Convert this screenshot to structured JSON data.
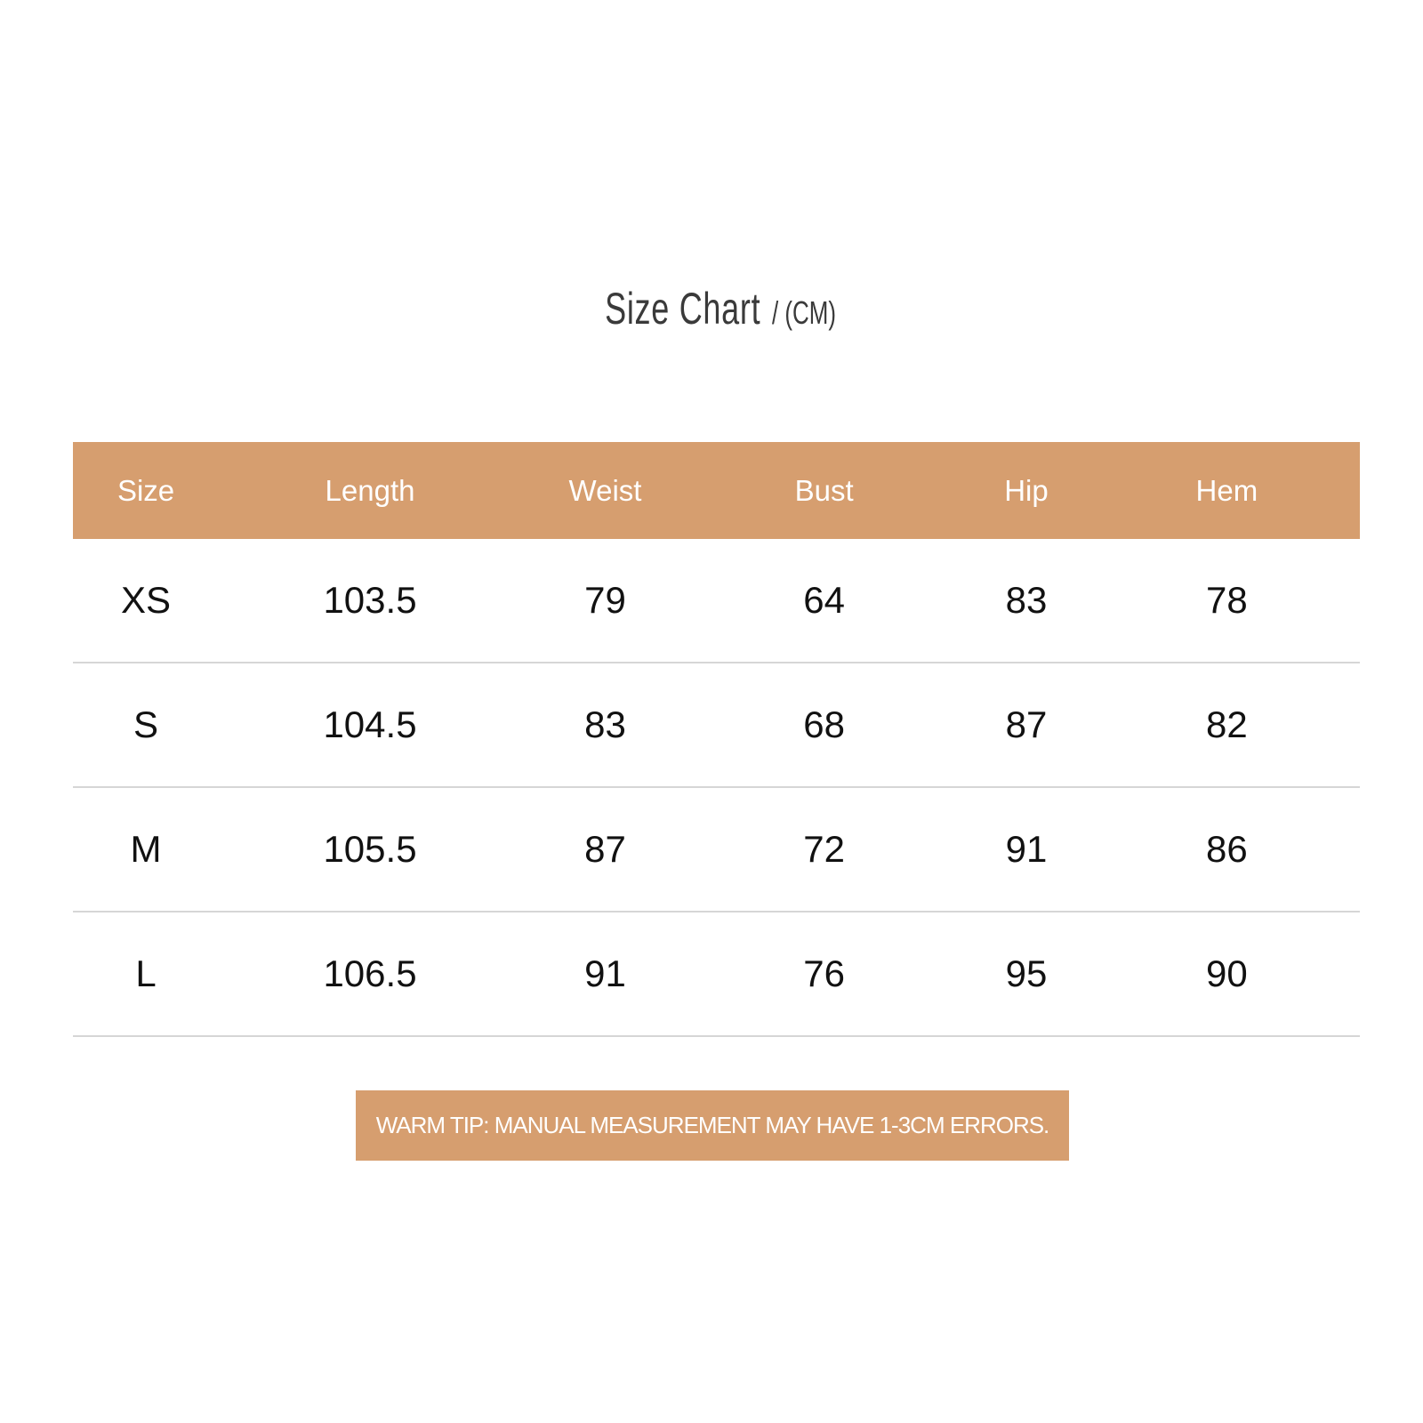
{
  "title": {
    "main": "Size Chart",
    "unit": "/ (CM)"
  },
  "table": {
    "headers": [
      "Size",
      "Length",
      "Weist",
      "Bust",
      "Hip",
      "Hem"
    ],
    "rows": [
      [
        "XS",
        "103.5",
        "79",
        "64",
        "83",
        "78"
      ],
      [
        "S",
        "104.5",
        "83",
        "68",
        "87",
        "82"
      ],
      [
        "M",
        "105.5",
        "87",
        "72",
        "91",
        "86"
      ],
      [
        "L",
        "106.5",
        "91",
        "76",
        "95",
        "90"
      ]
    ]
  },
  "tip": "WARM TIP: MANUAL MEASUREMENT MAY HAVE 1-3CM ERRORS.",
  "colors": {
    "accent": "#d69e6f",
    "text": "#111111",
    "title": "#3a3a3a"
  }
}
